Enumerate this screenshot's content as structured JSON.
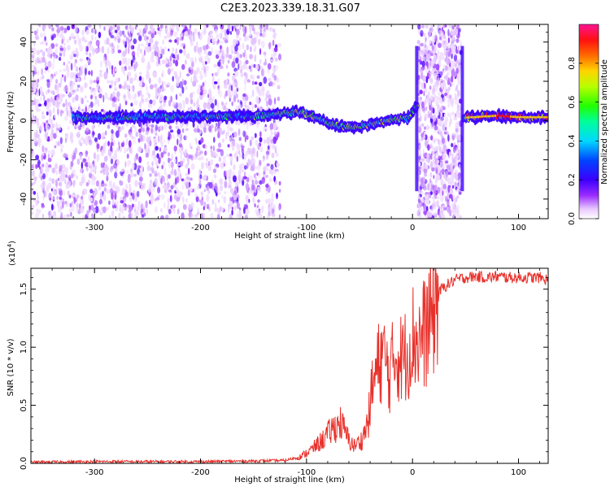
{
  "title": "C2E3.2023.339.18.31.G07",
  "chart_data": [
    {
      "type": "heatmap",
      "xlabel": "Height of straight line (km)",
      "ylabel": "Frequency (Hz)",
      "xlim": [
        -360,
        128
      ],
      "ylim": [
        -50,
        49
      ],
      "x_ticks": [
        -300,
        -200,
        -100,
        0,
        100
      ],
      "y_ticks": [
        -40,
        -20,
        0,
        20,
        40
      ],
      "x_tick_labels": [
        "-300",
        "-200",
        "-100",
        "0",
        "100"
      ],
      "y_tick_labels": [
        "-40",
        "-20",
        "0",
        "20",
        "40"
      ],
      "colorbar": {
        "label": "Normalized spectral amplitude",
        "range": [
          0,
          1
        ],
        "ticks": [
          0.0,
          0.2,
          0.4,
          0.6,
          0.8
        ],
        "tick_labels": [
          "0.0",
          "0.2",
          "0.4",
          "0.6",
          "0.8"
        ],
        "colormap": "rainbow (white-violet-blue-cyan-green-yellow-red-magenta)"
      },
      "ridge": {
        "description": "signal frequency track",
        "x": [
          -320,
          -260,
          -200,
          -150,
          -125,
          -110,
          -95,
          -80,
          -65,
          -50,
          -35,
          -20,
          -5,
          5,
          50,
          80,
          100,
          128
        ],
        "y": [
          1.5,
          1.8,
          2.0,
          2.3,
          3.5,
          4.5,
          2.5,
          -1.5,
          -3.5,
          -3.0,
          -1.5,
          0.5,
          1.0,
          8.0,
          1.5,
          2.5,
          1.7,
          1.7
        ]
      },
      "noise_regions": [
        {
          "x": [
            -360,
            -125
          ],
          "density": "high"
        },
        {
          "x": [
            5,
            46
          ],
          "density": "very high"
        }
      ]
    },
    {
      "type": "line",
      "xlabel": "Height of straight line (km)",
      "ylabel": "SNR (10 * v/v)",
      "y_scale_label_base": "(x10",
      "y_scale_label_exp": "4",
      "y_scale_label_end": ")",
      "xlim": [
        -360,
        128
      ],
      "ylim": [
        0,
        1.68
      ],
      "x_ticks": [
        -300,
        -200,
        -100,
        0,
        100
      ],
      "y_ticks": [
        0.0,
        0.5,
        1.0,
        1.5
      ],
      "x_tick_labels": [
        "-300",
        "-200",
        "-100",
        "0",
        "100"
      ],
      "y_tick_labels": [
        "0.0",
        "0.5",
        "1.0",
        "1.5"
      ],
      "color": "#e8302a",
      "series": [
        {
          "x": [
            -360,
            -300,
            -250,
            -200,
            -150,
            -120,
            -105,
            -95,
            -85,
            -75,
            -68,
            -60,
            -55,
            -48,
            -42,
            -38,
            -32,
            -28,
            -22,
            -16,
            -10,
            -5,
            0,
            5,
            10,
            15,
            20,
            25,
            30,
            40,
            50,
            60,
            70,
            80,
            90,
            100,
            110,
            120,
            128
          ],
          "y": [
            0.01,
            0.015,
            0.015,
            0.015,
            0.02,
            0.025,
            0.06,
            0.12,
            0.2,
            0.3,
            0.35,
            0.2,
            0.15,
            0.2,
            0.35,
            0.65,
            0.85,
            0.95,
            0.75,
            0.95,
            0.9,
            0.95,
            1.1,
            1.05,
            1.1,
            1.2,
            1.32,
            1.48,
            1.52,
            1.58,
            1.6,
            1.61,
            1.6,
            1.61,
            1.6,
            1.6,
            1.6,
            1.6,
            1.58
          ]
        }
      ]
    }
  ]
}
